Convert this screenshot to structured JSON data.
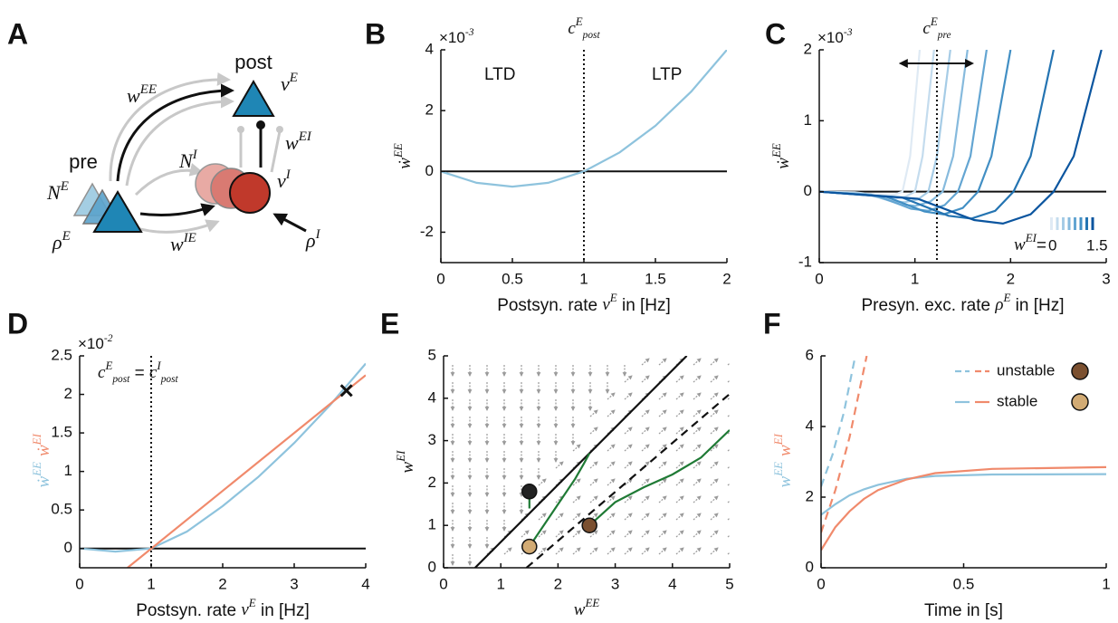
{
  "diagram": {
    "label": "A",
    "post": "post",
    "pre": "pre",
    "w_EE": [
      {
        "text": "w"
      },
      {
        "sup": "EE"
      }
    ],
    "nu_E": [
      {
        "text": "ν"
      },
      {
        "sup": "E"
      }
    ],
    "w_EI": [
      {
        "text": "w"
      },
      {
        "sup": "EI"
      }
    ],
    "N_I": [
      {
        "text": "N"
      },
      {
        "sup": "I"
      }
    ],
    "nu_I": [
      {
        "text": "ν"
      },
      {
        "sup": "I"
      }
    ],
    "N_E": [
      {
        "text": "N"
      },
      {
        "sup": "E"
      }
    ],
    "rho_E": [
      {
        "text": "ρ"
      },
      {
        "sup": "E"
      }
    ],
    "w_IE": [
      {
        "text": "w"
      },
      {
        "sup": "IE"
      }
    ],
    "rho_I": [
      {
        "text": "ρ"
      },
      {
        "sup": "I"
      }
    ]
  },
  "chart_data": [
    {
      "type": "line",
      "label": "B",
      "exponent": [
        {
          "text": "×10"
        },
        {
          "sup": "-3"
        }
      ],
      "xlabel": [
        {
          "text": "Postsyn. rate "
        },
        {
          "text": "ν"
        },
        {
          "sup": "E"
        },
        {
          "text": " in [Hz]"
        }
      ],
      "ylabel": [
        {
          "text": "ẇ"
        },
        {
          "sup": "EE"
        }
      ],
      "xlim": [
        0,
        2
      ],
      "ylim": [
        -3,
        4
      ],
      "xticks": [
        0,
        0.5,
        1,
        1.5,
        2
      ],
      "yticks": [
        -2,
        0,
        2,
        4
      ],
      "hline": 0,
      "vline": {
        "x": 1,
        "label": [
          {
            "text": "c"
          },
          {
            "sup": "E"
          },
          {
            "sub": "post"
          }
        ]
      },
      "annotations": [
        "LTD",
        "LTP"
      ],
      "series": [
        {
          "color": "#8ec3dd",
          "x": [
            0,
            0.25,
            0.5,
            0.75,
            1,
            1.25,
            1.5,
            1.75,
            2
          ],
          "values": [
            0,
            -0.375,
            -0.5,
            -0.375,
            0,
            0.625,
            1.5,
            2.625,
            4
          ]
        }
      ]
    },
    {
      "type": "line",
      "label": "C",
      "exponent": [
        {
          "text": "×10"
        },
        {
          "sup": "-3"
        }
      ],
      "xlabel": [
        {
          "text": "Presyn. exc. rate "
        },
        {
          "text": "ρ"
        },
        {
          "sup": "E"
        },
        {
          "text": " in [Hz]"
        }
      ],
      "ylabel": [
        {
          "text": "ẇ"
        },
        {
          "sup": "EE"
        }
      ],
      "xlim": [
        0,
        3
      ],
      "ylim": [
        -1,
        2
      ],
      "xticks": [
        0,
        1,
        2,
        3
      ],
      "yticks": [
        -1,
        0,
        1,
        2
      ],
      "hline": 0,
      "vline": {
        "x": 1.23,
        "label": [
          {
            "text": "c"
          },
          {
            "sup": "E"
          },
          {
            "sub": "pre"
          }
        ]
      },
      "colorbar": {
        "label": [
          {
            "text": "w"
          },
          {
            "sup": "EI"
          },
          {
            "text": "= "
          }
        ],
        "clim": [
          0,
          1.5
        ]
      },
      "series": [
        {
          "color": "#dfeaf4",
          "x": [
            0,
            0.37,
            0.58,
            0.68,
            0.79,
            0.87,
            0.95,
            1.05
          ],
          "values": [
            0,
            -0.01,
            -0.04,
            -0.05,
            -0.04,
            0,
            0.5,
            2
          ]
        },
        {
          "color": "#c4dcee",
          "x": [
            0,
            0.42,
            0.66,
            0.78,
            0.9,
            1.0,
            1.08,
            1.2
          ],
          "values": [
            0,
            -0.02,
            -0.09,
            -0.1,
            -0.07,
            0,
            0.5,
            2
          ]
        },
        {
          "color": "#a6cce6",
          "x": [
            0,
            0.48,
            0.75,
            0.89,
            1.03,
            1.14,
            1.23,
            1.37
          ],
          "values": [
            0,
            -0.03,
            -0.13,
            -0.15,
            -0.11,
            0,
            0.5,
            2
          ]
        },
        {
          "color": "#86badd",
          "x": [
            0,
            0.54,
            0.85,
            1.01,
            1.16,
            1.29,
            1.4,
            1.55
          ],
          "values": [
            0,
            -0.04,
            -0.18,
            -0.2,
            -0.14,
            0,
            0.5,
            2
          ]
        },
        {
          "color": "#63a5d2",
          "x": [
            0,
            0.61,
            0.96,
            1.14,
            1.31,
            1.45,
            1.58,
            1.75
          ],
          "values": [
            0,
            -0.06,
            -0.24,
            -0.27,
            -0.19,
            0,
            0.5,
            2
          ]
        },
        {
          "color": "#428fc4",
          "x": [
            0,
            0.7,
            1.1,
            1.3,
            1.5,
            1.66,
            1.8,
            2.0
          ],
          "values": [
            0,
            -0.07,
            -0.28,
            -0.32,
            -0.23,
            0,
            0.5,
            2
          ]
        },
        {
          "color": "#2474b2",
          "x": [
            0,
            0.86,
            1.35,
            1.59,
            1.84,
            2.03,
            2.21,
            2.45
          ],
          "values": [
            0,
            -0.08,
            -0.34,
            -0.38,
            -0.27,
            0,
            0.5,
            2
          ]
        },
        {
          "color": "#0b559f",
          "x": [
            0,
            1.03,
            1.62,
            1.92,
            2.21,
            2.45,
            2.66,
            2.95
          ],
          "values": [
            0,
            -0.1,
            -0.4,
            -0.45,
            -0.32,
            0,
            0.5,
            2
          ]
        }
      ]
    },
    {
      "type": "line",
      "label": "D",
      "exponent": [
        {
          "text": "×10"
        },
        {
          "sup": "-2"
        }
      ],
      "xlabel": [
        {
          "text": "Postsyn. rate "
        },
        {
          "text": "ν"
        },
        {
          "sup": "E"
        },
        {
          "text": " in [Hz]"
        }
      ],
      "ylabel": [
        {
          "text": "ẇ"
        },
        {
          "sup": "EE"
        }
      ],
      "ylabel2": [
        {
          "text": "ẇ"
        },
        {
          "sup": "EI"
        }
      ],
      "xlim": [
        0,
        4
      ],
      "ylim": [
        -0.25,
        2.5
      ],
      "xticks": [
        0,
        1,
        2,
        3,
        4
      ],
      "yticks": [
        0,
        0.5,
        1,
        1.5,
        2,
        2.5
      ],
      "hline": 0,
      "vline": {
        "x": 1,
        "label": [
          {
            "text": "c"
          },
          {
            "sup": "E"
          },
          {
            "sub": "post"
          },
          {
            "text": " = "
          },
          {
            "text": "c"
          },
          {
            "sup": "I"
          },
          {
            "sub": "post"
          }
        ]
      },
      "cross": {
        "x": 3.73,
        "y": 2.05
      },
      "series": [
        {
          "color": "#8ec3dd",
          "x": [
            0,
            0.5,
            1,
            1.5,
            2,
            2.5,
            3,
            3.5,
            4
          ],
          "values": [
            0,
            -0.04,
            0,
            0.22,
            0.55,
            0.93,
            1.37,
            1.86,
            2.4
          ]
        },
        {
          "color": "#f08a6c",
          "x": [
            0.67,
            4
          ],
          "values": [
            -0.25,
            2.25
          ]
        }
      ]
    },
    {
      "type": "line",
      "label": "E",
      "xlabel": [
        {
          "text": "w"
        },
        {
          "sup": "EE"
        }
      ],
      "ylabel": [
        {
          "text": "w"
        },
        {
          "sup": "EI"
        }
      ],
      "xlim": [
        0,
        5
      ],
      "ylim": [
        0,
        5
      ],
      "xticks": [
        0,
        1,
        2,
        3,
        4,
        5
      ],
      "yticks": [
        0,
        1,
        2,
        3,
        4,
        5
      ],
      "series": [
        {
          "color": "#111111",
          "x": [
            0.55,
            4.25
          ],
          "values": [
            0,
            5
          ]
        },
        {
          "color": "#111111",
          "dash": true,
          "x": [
            1.45,
            5
          ],
          "values": [
            0,
            4.1
          ]
        },
        {
          "color": "#1f7a35",
          "x": [
            1.5,
            1.75,
            2.05,
            2.3,
            2.45,
            2.55
          ],
          "values": [
            0.5,
            1.0,
            1.6,
            2.1,
            2.45,
            2.7
          ]
        },
        {
          "color": "#1f7a35",
          "x": [
            2.55,
            3,
            3.5,
            4,
            4.5,
            5
          ],
          "values": [
            1,
            1.55,
            1.9,
            2.2,
            2.6,
            3.25
          ]
        },
        {
          "color": "#1f7a35",
          "x": [
            1.5,
            1.5
          ],
          "values": [
            1.8,
            1.4
          ]
        }
      ],
      "points": [
        {
          "x": 1.5,
          "y": 1.8,
          "color": "#222222"
        },
        {
          "x": 2.55,
          "y": 1.0,
          "color": "#7b5030"
        },
        {
          "x": 1.5,
          "y": 0.5,
          "color": "#d2ab74"
        }
      ]
    },
    {
      "type": "line",
      "label": "F",
      "xlabel": [
        {
          "text": "Time in [s]"
        }
      ],
      "ylabel": [
        {
          "text": "w"
        },
        {
          "sup": "EE"
        }
      ],
      "ylabel2": [
        {
          "text": "w"
        },
        {
          "sup": "EI"
        }
      ],
      "xlim": [
        0,
        1
      ],
      "ylim": [
        0,
        6
      ],
      "xticks": [
        0,
        0.5,
        1
      ],
      "yticks": [
        0,
        2,
        4,
        6
      ],
      "legend": [
        {
          "name": "unstable",
          "dash": true,
          "marker": "#7b5030"
        },
        {
          "name": "stable",
          "marker": "#d2ab74"
        }
      ],
      "series": [
        {
          "color": "#8ec3dd",
          "x": [
            0,
            0.05,
            0.1,
            0.15,
            0.2,
            0.3,
            0.4,
            0.6,
            1
          ],
          "values": [
            1.5,
            1.8,
            2.05,
            2.22,
            2.35,
            2.52,
            2.6,
            2.64,
            2.65
          ]
        },
        {
          "color": "#f08a6c",
          "x": [
            0,
            0.05,
            0.1,
            0.15,
            0.2,
            0.3,
            0.4,
            0.6,
            1
          ],
          "values": [
            0.5,
            1.15,
            1.6,
            1.95,
            2.2,
            2.5,
            2.68,
            2.8,
            2.85
          ]
        },
        {
          "color": "#8ec3dd",
          "dash": true,
          "x": [
            0,
            0.04,
            0.08,
            0.12
          ],
          "values": [
            2.3,
            3.2,
            4.4,
            6
          ]
        },
        {
          "color": "#f08a6c",
          "dash": true,
          "x": [
            0,
            0.05,
            0.1,
            0.16
          ],
          "values": [
            1,
            2.2,
            3.7,
            6
          ]
        }
      ]
    }
  ]
}
